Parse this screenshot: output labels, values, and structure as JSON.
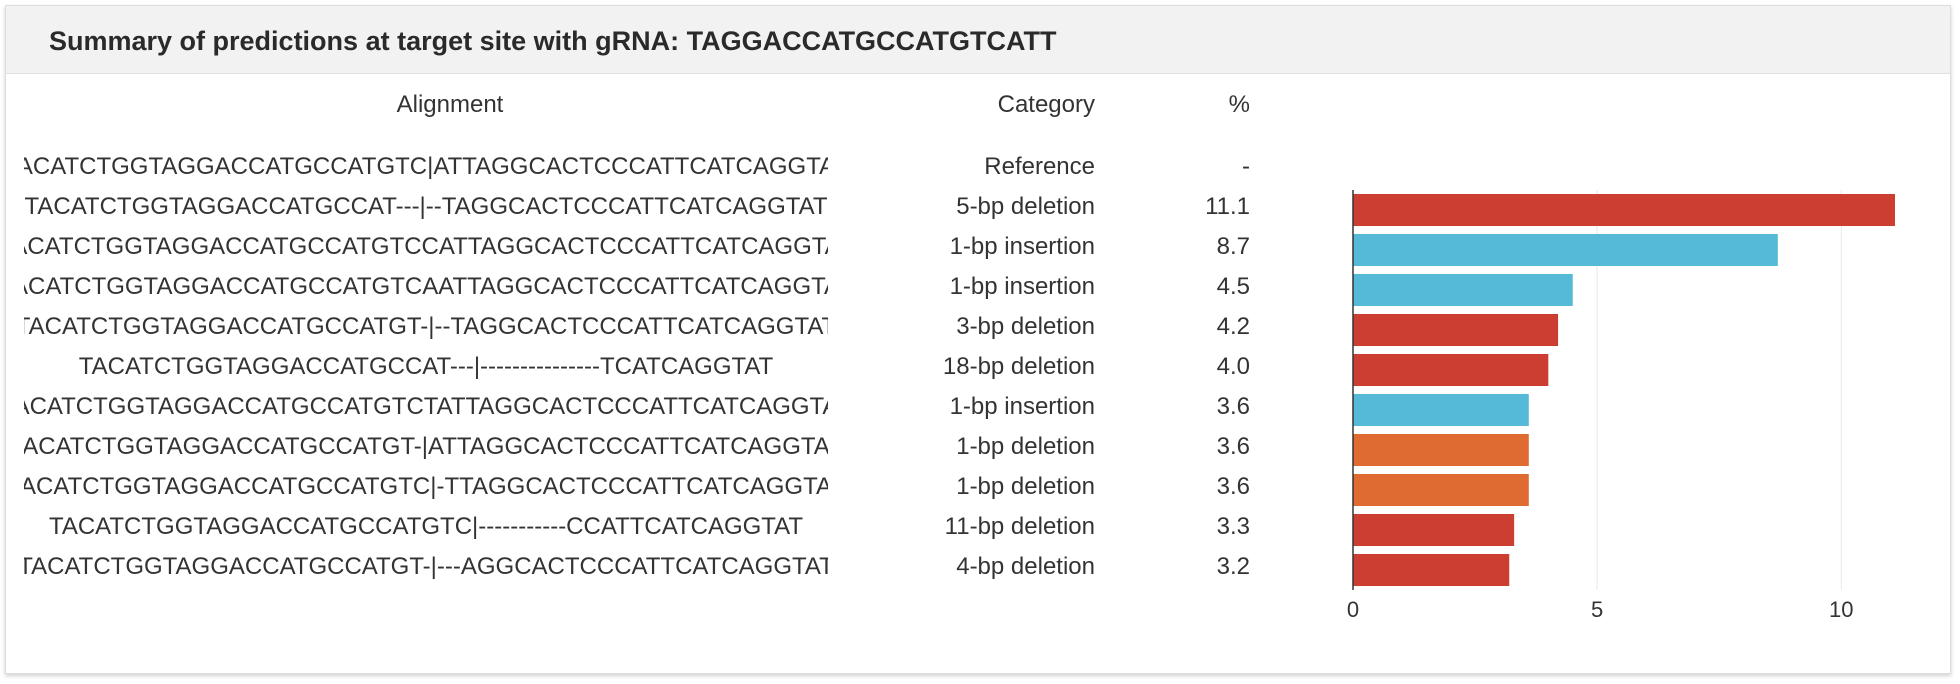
{
  "panel": {
    "title": "Summary of predictions at target site with gRNA: TAGGACCATGCCATGTCATT"
  },
  "table": {
    "headers": {
      "alignment": "Alignment",
      "category": "Category",
      "percent": "%"
    },
    "rows": [
      {
        "alignment": "TACATCTGGTAGGACCATGCCATGTC|ATTAGGCACTCCCATTCATCAGGTAT",
        "category": "Reference",
        "percent": "-"
      },
      {
        "alignment": "TACATCTGGTAGGACCATGCCAT---|--TAGGCACTCCCATTCATCAGGTAT",
        "category": "5-bp deletion",
        "percent": "11.1"
      },
      {
        "alignment": "TACATCTGGTAGGACCATGCCATGTCCATTAGGCACTCCCATTCATCAGGTAT",
        "category": "1-bp insertion",
        "percent": "8.7"
      },
      {
        "alignment": "TACATCTGGTAGGACCATGCCATGTCAATTAGGCACTCCCATTCATCAGGTAT",
        "category": "1-bp insertion",
        "percent": "4.5"
      },
      {
        "alignment": "TACATCTGGTAGGACCATGCCATGT-|--TAGGCACTCCCATTCATCAGGTAT",
        "category": "3-bp deletion",
        "percent": "4.2"
      },
      {
        "alignment": "TACATCTGGTAGGACCATGCCAT---|---------------TCATCAGGTAT",
        "category": "18-bp deletion",
        "percent": "4.0"
      },
      {
        "alignment": "TACATCTGGTAGGACCATGCCATGTCTATTAGGCACTCCCATTCATCAGGTAT",
        "category": "1-bp insertion",
        "percent": "3.6"
      },
      {
        "alignment": "TACATCTGGTAGGACCATGCCATGT-|ATTAGGCACTCCCATTCATCAGGTAT",
        "category": "1-bp deletion",
        "percent": "3.6"
      },
      {
        "alignment": "TACATCTGGTAGGACCATGCCATGTC|-TTAGGCACTCCCATTCATCAGGTAT",
        "category": "1-bp deletion",
        "percent": "3.6"
      },
      {
        "alignment": "TACATCTGGTAGGACCATGCCATGTC|-----------CCATTCATCAGGTAT",
        "category": "11-bp deletion",
        "percent": "3.3"
      },
      {
        "alignment": "TACATCTGGTAGGACCATGCCATGT-|---AGGCACTCCCATTCATCAGGTAT",
        "category": "4-bp deletion",
        "percent": "3.2"
      }
    ]
  },
  "chart_data": {
    "type": "bar",
    "orientation": "horizontal",
    "categories": [
      "5-bp deletion",
      "1-bp insertion",
      "1-bp insertion",
      "3-bp deletion",
      "18-bp deletion",
      "1-bp insertion",
      "1-bp deletion",
      "1-bp deletion",
      "11-bp deletion",
      "4-bp deletion"
    ],
    "values": [
      11.1,
      8.7,
      4.5,
      4.2,
      4.0,
      3.6,
      3.6,
      3.6,
      3.3,
      3.2
    ],
    "bar_colors": [
      "#cc3d32",
      "#54bad8",
      "#54bad8",
      "#cc3d32",
      "#cc3d32",
      "#54bad8",
      "#e06b32",
      "#e06b32",
      "#cc3d32",
      "#cc3d32"
    ],
    "xlim": [
      0,
      11.1
    ],
    "x_ticks": [
      0,
      5,
      10
    ],
    "tick_labels": [
      "0",
      "5",
      "10"
    ],
    "grid": true,
    "title": "",
    "xlabel": "",
    "ylabel": ""
  }
}
